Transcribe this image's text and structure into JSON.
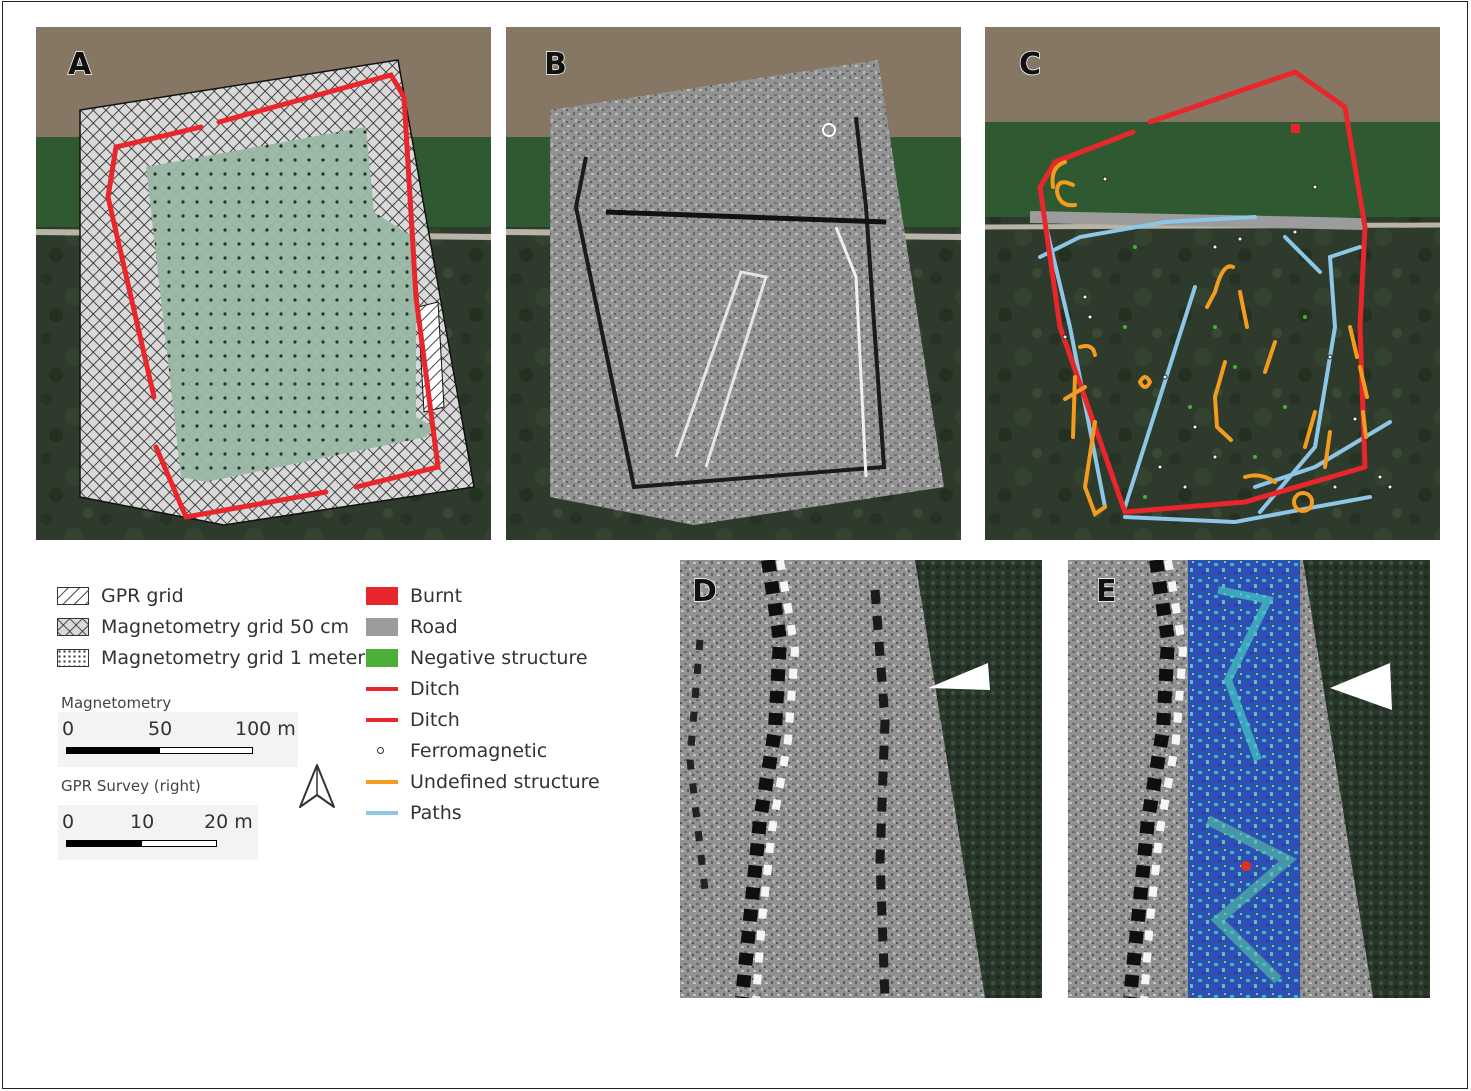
{
  "panels": {
    "a_label": "A",
    "b_label": "B",
    "c_label": "C",
    "d_label": "D",
    "e_label": "E"
  },
  "legend_left": [
    {
      "label": "GPR grid",
      "symbol": "hatch"
    },
    {
      "label": "Magnetometry grid 50 cm",
      "symbol": "crosshatch"
    },
    {
      "label": "Magnetometry grid 1 meter",
      "symbol": "dots"
    }
  ],
  "legend_right": [
    {
      "label": "Burnt",
      "color": "#e8262b",
      "symbol": "fill"
    },
    {
      "label": "Road",
      "color": "#9c9c9c",
      "symbol": "fill"
    },
    {
      "label": "Negative structure",
      "color": "#4caf37",
      "symbol": "fill"
    },
    {
      "label": "Ditch",
      "color": "#e8262b",
      "symbol": "line"
    },
    {
      "label": "Ditch",
      "color": "#e8262b",
      "symbol": "line"
    },
    {
      "label": "Ferromagnetic",
      "color": "#333333",
      "symbol": "dot"
    },
    {
      "label": "Undefined structure",
      "color": "#f39c1e",
      "symbol": "line"
    },
    {
      "label": "Paths",
      "color": "#8ec6e8",
      "symbol": "line"
    }
  ],
  "scalebar_mag": {
    "title": "Magnetometry",
    "ticks": [
      "0",
      "50",
      "100 m"
    ]
  },
  "scalebar_gpr": {
    "title": "GPR Survey (right)",
    "ticks": [
      "0",
      "10",
      "20 m"
    ]
  },
  "north_arrow": "north-arrow-icon",
  "colors": {
    "ditch": "#e8262b",
    "undefined": "#f39c1e",
    "paths": "#8ec6e8",
    "road": "#9c9c9c",
    "negative": "#4caf37"
  }
}
